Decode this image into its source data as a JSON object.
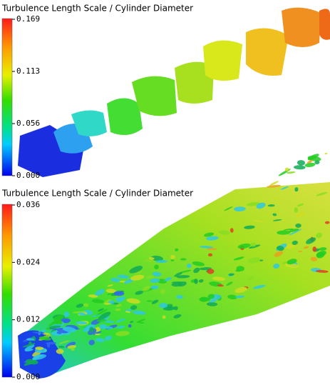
{
  "panels": [
    {
      "title": "Turbulence Length Scale / Cylinder Diameter",
      "colorbar": {
        "ticks": [
          "0.169",
          "0.113",
          "0.056",
          "0.000"
        ]
      }
    },
    {
      "title": "Turbulence Length Scale / Cylinder Diameter",
      "colorbar": {
        "ticks": [
          "0.036",
          "0.024",
          "0.012",
          "0.000"
        ]
      }
    }
  ]
}
